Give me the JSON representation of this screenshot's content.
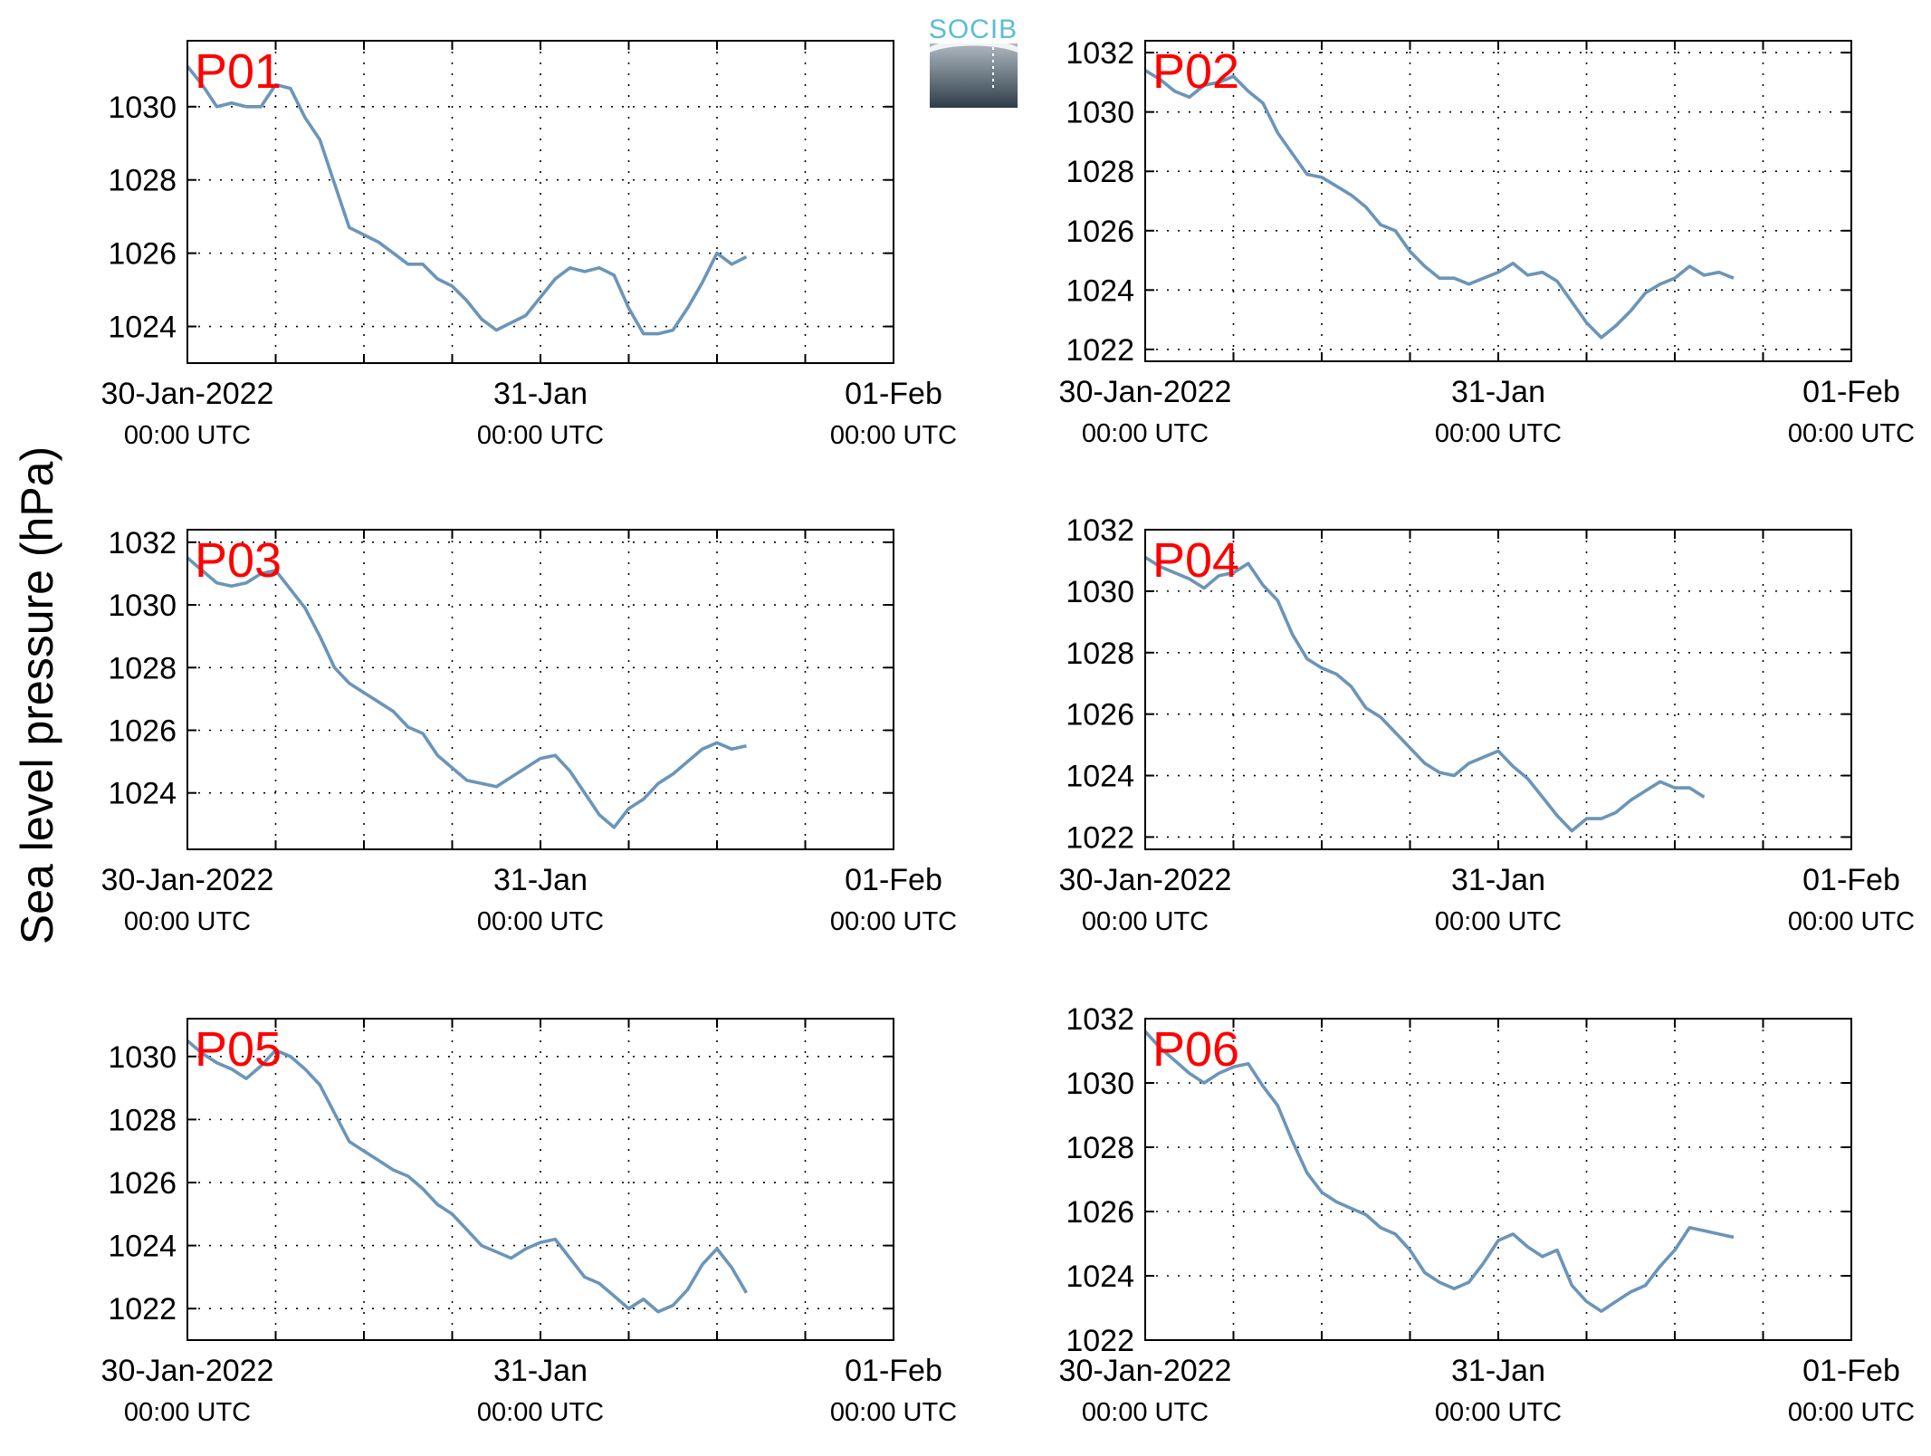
{
  "ylabel": "Sea level pressure (hPa)",
  "logo": {
    "text": "SOCIB",
    "color": "#5bbcd6"
  },
  "colors": {
    "line": "#6b95b8",
    "panel_label": "#ff0000",
    "axis": "#000000"
  },
  "chart_data": [
    {
      "type": "line",
      "label": "P01",
      "x_ticks": [
        {
          "top": "30-Jan-2022",
          "bottom": "00:00 UTC"
        },
        {
          "top": "31-Jan",
          "bottom": "00:00 UTC"
        },
        {
          "top": "01-Feb",
          "bottom": "00:00 UTC"
        }
      ],
      "xlim_hours": [
        0,
        48
      ],
      "ylim": [
        1023,
        1031.8
      ],
      "yticks": [
        1024,
        1026,
        1028,
        1030
      ],
      "grid": true,
      "series": [
        {
          "x": [
            0,
            1,
            2,
            3,
            4,
            5,
            6,
            7,
            8,
            9,
            10,
            11,
            12,
            13,
            14,
            15,
            16,
            17,
            18,
            19,
            20,
            21,
            22,
            23,
            24,
            25,
            26,
            27,
            28,
            29,
            30,
            31,
            32,
            33,
            34,
            35,
            36,
            37,
            38,
            39,
            40,
            41,
            42,
            43,
            44,
            45,
            46,
            47,
            48
          ],
          "y": [
            1031.1,
            1030.6,
            1030.0,
            1030.1,
            1030.0,
            1030.0,
            1030.6,
            1030.5,
            1029.7,
            1029.1,
            1027.9,
            1026.7,
            1026.5,
            1026.3,
            1026.0,
            1025.7,
            1025.7,
            1025.3,
            1025.1,
            1024.7,
            1024.2,
            1023.9,
            1024.1,
            1024.3,
            1024.8,
            1025.3,
            1025.6,
            1025.5,
            1025.6,
            1025.4,
            1024.5,
            1023.8,
            1023.8,
            1023.9,
            1024.5,
            1025.2,
            1026.0,
            1025.7,
            1025.9,
            null,
            null,
            null,
            null,
            null,
            null,
            null,
            null,
            null,
            null
          ]
        }
      ]
    },
    {
      "type": "line",
      "label": "P02",
      "x_ticks": [
        {
          "top": "30-Jan-2022",
          "bottom": "00:00 UTC"
        },
        {
          "top": "31-Jan",
          "bottom": "00:00 UTC"
        },
        {
          "top": "01-Feb",
          "bottom": "00:00 UTC"
        }
      ],
      "xlim_hours": [
        0,
        48
      ],
      "ylim": [
        1021.6,
        1032.4
      ],
      "yticks": [
        1022,
        1024,
        1026,
        1028,
        1030,
        1032
      ],
      "grid": true,
      "series": [
        {
          "x": [
            0,
            1,
            2,
            3,
            4,
            5,
            6,
            7,
            8,
            9,
            10,
            11,
            12,
            13,
            14,
            15,
            16,
            17,
            18,
            19,
            20,
            21,
            22,
            23,
            24,
            25,
            26,
            27,
            28,
            29,
            30,
            31,
            32,
            33,
            34,
            35,
            36,
            37,
            38,
            39,
            40,
            41,
            42,
            43,
            44,
            45,
            46,
            47,
            48
          ],
          "y": [
            1031.4,
            1031.1,
            1030.7,
            1030.5,
            1030.9,
            1031.0,
            1031.2,
            1030.7,
            1030.3,
            1029.3,
            1028.6,
            1027.9,
            1027.8,
            1027.5,
            1027.2,
            1026.8,
            1026.2,
            1026.0,
            1025.3,
            1024.8,
            1024.4,
            1024.4,
            1024.2,
            1024.4,
            1024.6,
            1024.9,
            1024.5,
            1024.6,
            1024.3,
            1023.6,
            1022.9,
            1022.4,
            1022.8,
            1023.3,
            1023.9,
            1024.2,
            1024.4,
            1024.8,
            1024.5,
            1024.6,
            1024.4,
            null,
            null,
            null,
            null,
            null,
            null,
            null,
            null
          ]
        }
      ]
    },
    {
      "type": "line",
      "label": "P03",
      "x_ticks": [
        {
          "top": "30-Jan-2022",
          "bottom": "00:00 UTC"
        },
        {
          "top": "31-Jan",
          "bottom": "00:00 UTC"
        },
        {
          "top": "01-Feb",
          "bottom": "00:00 UTC"
        }
      ],
      "xlim_hours": [
        0,
        48
      ],
      "ylim": [
        1022.2,
        1032.4
      ],
      "yticks": [
        1024,
        1026,
        1028,
        1030,
        1032
      ],
      "grid": true,
      "series": [
        {
          "x": [
            0,
            1,
            2,
            3,
            4,
            5,
            6,
            7,
            8,
            9,
            10,
            11,
            12,
            13,
            14,
            15,
            16,
            17,
            18,
            19,
            20,
            21,
            22,
            23,
            24,
            25,
            26,
            27,
            28,
            29,
            30,
            31,
            32,
            33,
            34,
            35,
            36,
            37,
            38,
            39,
            40,
            41,
            42,
            43,
            44,
            45,
            46,
            47,
            48
          ],
          "y": [
            1031.5,
            1031.1,
            1030.7,
            1030.6,
            1030.7,
            1031.0,
            1031.1,
            1030.5,
            1029.9,
            1029.0,
            1028.0,
            1027.5,
            1027.2,
            1026.9,
            1026.6,
            1026.1,
            1025.9,
            1025.2,
            1024.8,
            1024.4,
            1024.3,
            1024.2,
            1024.5,
            1024.8,
            1025.1,
            1025.2,
            1024.7,
            1024.0,
            1023.3,
            1022.9,
            1023.5,
            1023.8,
            1024.3,
            1024.6,
            1025.0,
            1025.4,
            1025.6,
            1025.4,
            1025.5,
            null,
            null,
            null,
            null,
            null,
            null,
            null,
            null,
            null,
            null
          ]
        }
      ]
    },
    {
      "type": "line",
      "label": "P04",
      "x_ticks": [
        {
          "top": "30-Jan-2022",
          "bottom": "00:00 UTC"
        },
        {
          "top": "31-Jan",
          "bottom": "00:00 UTC"
        },
        {
          "top": "01-Feb",
          "bottom": "00:00 UTC"
        }
      ],
      "xlim_hours": [
        0,
        48
      ],
      "ylim": [
        1021.6,
        1032.0
      ],
      "yticks": [
        1022,
        1024,
        1026,
        1028,
        1030,
        1032
      ],
      "grid": true,
      "series": [
        {
          "x": [
            0,
            1,
            2,
            3,
            4,
            5,
            6,
            7,
            8,
            9,
            10,
            11,
            12,
            13,
            14,
            15,
            16,
            17,
            18,
            19,
            20,
            21,
            22,
            23,
            24,
            25,
            26,
            27,
            28,
            29,
            30,
            31,
            32,
            33,
            34,
            35,
            36,
            37,
            38,
            39,
            40,
            41,
            42,
            43,
            44,
            45,
            46,
            47,
            48
          ],
          "y": [
            1031.1,
            1030.8,
            1030.6,
            1030.4,
            1030.1,
            1030.5,
            1030.6,
            1030.9,
            1030.2,
            1029.7,
            1028.6,
            1027.8,
            1027.5,
            1027.3,
            1026.9,
            1026.2,
            1025.9,
            1025.4,
            1024.9,
            1024.4,
            1024.1,
            1024.0,
            1024.4,
            1024.6,
            1024.8,
            1024.3,
            1023.9,
            1023.3,
            1022.7,
            1022.2,
            1022.6,
            1022.6,
            1022.8,
            1023.2,
            1023.5,
            1023.8,
            1023.6,
            1023.6,
            1023.3,
            null,
            null,
            null,
            null,
            null,
            null,
            null,
            null,
            null,
            null
          ]
        }
      ]
    },
    {
      "type": "line",
      "label": "P05",
      "x_ticks": [
        {
          "top": "30-Jan-2022",
          "bottom": "00:00 UTC"
        },
        {
          "top": "31-Jan",
          "bottom": "00:00 UTC"
        },
        {
          "top": "01-Feb",
          "bottom": "00:00 UTC"
        }
      ],
      "xlim_hours": [
        0,
        48
      ],
      "ylim": [
        1021.0,
        1031.2
      ],
      "yticks": [
        1022,
        1024,
        1026,
        1028,
        1030
      ],
      "grid": true,
      "series": [
        {
          "x": [
            0,
            1,
            2,
            3,
            4,
            5,
            6,
            7,
            8,
            9,
            10,
            11,
            12,
            13,
            14,
            15,
            16,
            17,
            18,
            19,
            20,
            21,
            22,
            23,
            24,
            25,
            26,
            27,
            28,
            29,
            30,
            31,
            32,
            33,
            34,
            35,
            36,
            37,
            38,
            39,
            40,
            41,
            42,
            43,
            44,
            45,
            46,
            47,
            48
          ],
          "y": [
            1030.5,
            1030.1,
            1029.8,
            1029.6,
            1029.3,
            1029.7,
            1030.2,
            1030.0,
            1029.6,
            1029.1,
            1028.2,
            1027.3,
            1027.0,
            1026.7,
            1026.4,
            1026.2,
            1025.8,
            1025.3,
            1025.0,
            1024.5,
            1024.0,
            1023.8,
            1023.6,
            1023.9,
            1024.1,
            1024.2,
            1023.6,
            1023.0,
            1022.8,
            1022.4,
            1022.0,
            1022.3,
            1021.9,
            1022.1,
            1022.6,
            1023.4,
            1023.9,
            1023.3,
            1022.5,
            null,
            null,
            null,
            null,
            null,
            null,
            null,
            null,
            null,
            null
          ]
        }
      ]
    },
    {
      "type": "line",
      "label": "P06",
      "x_ticks": [
        {
          "top": "30-Jan-2022",
          "bottom": "00:00 UTC"
        },
        {
          "top": "31-Jan",
          "bottom": "00:00 UTC"
        },
        {
          "top": "01-Feb",
          "bottom": "00:00 UTC"
        }
      ],
      "xlim_hours": [
        0,
        48
      ],
      "ylim": [
        1022.0,
        1032.0
      ],
      "yticks": [
        1022,
        1024,
        1026,
        1028,
        1030,
        1032
      ],
      "grid": true,
      "series": [
        {
          "x": [
            0,
            1,
            2,
            3,
            4,
            5,
            6,
            7,
            8,
            9,
            10,
            11,
            12,
            13,
            14,
            15,
            16,
            17,
            18,
            19,
            20,
            21,
            22,
            23,
            24,
            25,
            26,
            27,
            28,
            29,
            30,
            31,
            32,
            33,
            34,
            35,
            36,
            37,
            38,
            39,
            40,
            41,
            42,
            43,
            44,
            45,
            46,
            47,
            48
          ],
          "y": [
            1031.6,
            1031.1,
            1030.7,
            1030.3,
            1030.0,
            1030.3,
            1030.5,
            1030.6,
            1029.9,
            1029.3,
            1028.2,
            1027.2,
            1026.6,
            1026.3,
            1026.1,
            1025.9,
            1025.5,
            1025.3,
            1024.8,
            1024.1,
            1023.8,
            1023.6,
            1023.8,
            1024.4,
            1025.1,
            1025.3,
            1024.9,
            1024.6,
            1024.8,
            1023.7,
            1023.2,
            1022.9,
            1023.2,
            1023.5,
            1023.7,
            1024.3,
            1024.8,
            1025.5,
            1025.4,
            1025.3,
            1025.2,
            null,
            null,
            null,
            null,
            null,
            null,
            null,
            null
          ]
        }
      ]
    }
  ]
}
